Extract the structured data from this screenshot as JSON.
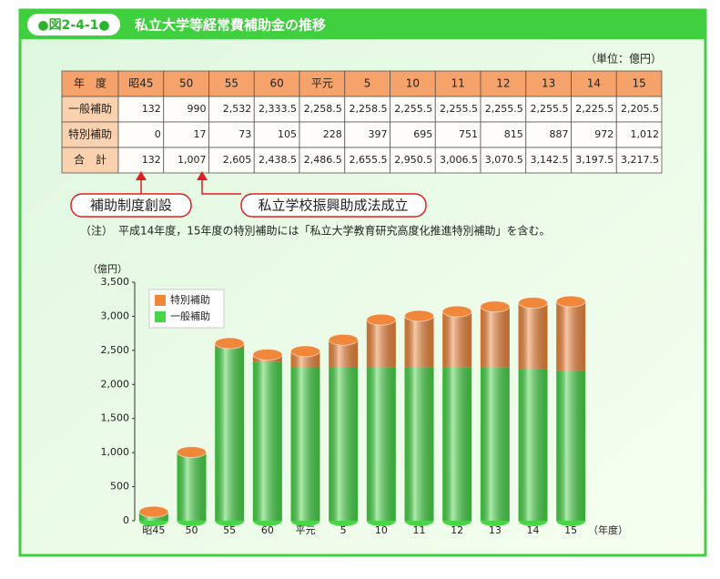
{
  "header": {
    "badge": "●図2-4-1●",
    "title": "私立大学等経常費補助金の推移"
  },
  "table": {
    "unit": "（単位：億円）",
    "header": [
      "年　度",
      "昭45",
      "50",
      "55",
      "60",
      "平元",
      "5",
      "10",
      "11",
      "12",
      "13",
      "14",
      "15"
    ],
    "rows": [
      [
        "一般補助",
        "132",
        "990",
        "2,532",
        "2,333.5",
        "2,258.5",
        "2,258.5",
        "2,255.5",
        "2,255.5",
        "2,255.5",
        "2,255.5",
        "2,225.5",
        "2,205.5"
      ],
      [
        "特別補助",
        "0",
        "17",
        "73",
        "105",
        "228",
        "397",
        "695",
        "751",
        "815",
        "887",
        "972",
        "1,012"
      ],
      [
        "合　計",
        "132",
        "1,007",
        "2,605",
        "2,438.5",
        "2,486.5",
        "2,655.5",
        "2,950.5",
        "3,006.5",
        "3,070.5",
        "3,142.5",
        "3,197.5",
        "3,217.5"
      ]
    ]
  },
  "callouts": [
    "補助制度創設",
    "私立学校振興助成法成立"
  ],
  "note": "（注）　平成14年度，15年度の特別補助には「私立大学教育研究高度化推進特別補助」を含む。",
  "chart_data": {
    "type": "bar",
    "stacked": true,
    "y_label": "（億円）",
    "x_label": "（年度）",
    "categories": [
      "昭45",
      "50",
      "55",
      "60",
      "平元",
      "5",
      "10",
      "11",
      "12",
      "13",
      "14",
      "15"
    ],
    "series": [
      {
        "name": "一般補助",
        "color": "#46d646",
        "values": [
          132,
          990,
          2532,
          2333.5,
          2258.5,
          2258.5,
          2255.5,
          2255.5,
          2255.5,
          2255.5,
          2225.5,
          2205.5
        ]
      },
      {
        "name": "特別補助",
        "color": "#f0873a",
        "values": [
          0,
          17,
          73,
          105,
          228,
          397,
          695,
          751,
          815,
          887,
          972,
          1012
        ]
      }
    ],
    "ylim": [
      0,
      3500
    ],
    "yticks": [
      0,
      500,
      {
        "value": 1000,
        "label": "1,000"
      },
      {
        "value": 1500,
        "label": "1,500"
      },
      {
        "value": 2000,
        "label": "2,000"
      },
      {
        "value": 2500,
        "label": "2,500"
      },
      {
        "value": 3000,
        "label": "3,000"
      },
      {
        "value": 3500,
        "label": "3,500"
      }
    ],
    "grid": false
  }
}
